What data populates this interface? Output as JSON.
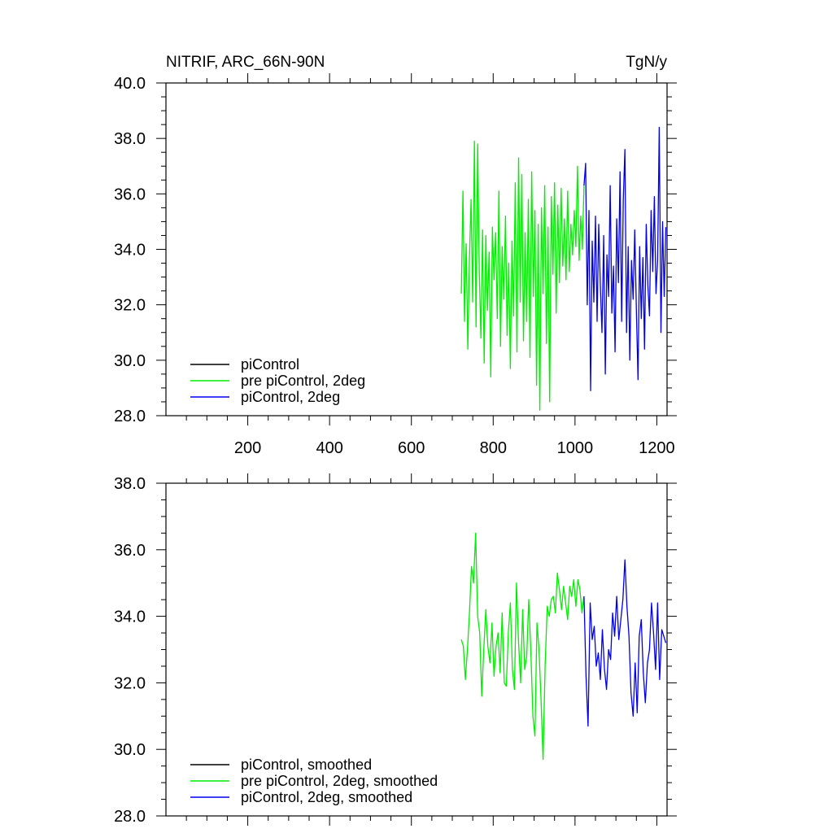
{
  "colors": {
    "black": "#000000",
    "green": "#00ee00",
    "blue": "#0000ee"
  },
  "chart_data": [
    {
      "type": "line",
      "title_left": "NITRIF, ARC_66N-90N",
      "title_right": "TgN/y",
      "xlim": [
        0,
        1225
      ],
      "ylim": [
        28.0,
        40.0
      ],
      "yticks": [
        28.0,
        30.0,
        32.0,
        34.0,
        36.0,
        38.0,
        40.0
      ],
      "ytick_labels": [
        "28.0",
        "30.0",
        "32.0",
        "34.0",
        "36.0",
        "38.0",
        "40.0"
      ],
      "xticks": [
        200,
        400,
        600,
        800,
        1000,
        1200
      ],
      "xtick_labels": [
        "200",
        "400",
        "600",
        "800",
        "1000",
        "1200"
      ],
      "legend": [
        "piControl",
        "pre piControl, 2deg",
        "piControl, 2deg"
      ],
      "legend_location": "bottom-left",
      "series": [
        {
          "name": "piControl",
          "color": "black",
          "x": [],
          "values": []
        },
        {
          "name": "pre piControl, 2deg",
          "color": "green",
          "x": [
            722,
            726,
            730,
            734,
            738,
            742,
            746,
            750,
            754,
            758,
            762,
            766,
            770,
            774,
            778,
            782,
            786,
            790,
            794,
            798,
            802,
            806,
            810,
            814,
            818,
            822,
            826,
            830,
            834,
            838,
            842,
            846,
            850,
            854,
            858,
            862,
            866,
            870,
            874,
            878,
            882,
            886,
            890,
            894,
            898,
            902,
            906,
            910,
            914,
            918,
            922,
            926,
            930,
            934,
            938,
            942,
            946,
            950,
            954,
            958,
            962,
            966,
            970,
            974,
            978,
            982,
            986,
            990,
            994,
            998,
            1002,
            1006,
            1010,
            1014,
            1018,
            1022
          ],
          "values": [
            32.4,
            36.1,
            31.4,
            34.2,
            30.4,
            33.7,
            35.8,
            32.1,
            37.9,
            31.2,
            37.8,
            33.2,
            30.8,
            34.7,
            29.9,
            34.5,
            31.8,
            33.9,
            29.4,
            34.8,
            32.9,
            34.6,
            31.5,
            36.1,
            30.5,
            34.1,
            32.2,
            35.2,
            30.9,
            33.5,
            29.7,
            34.3,
            31.6,
            36.4,
            30.3,
            37.3,
            32.1,
            36.7,
            30.7,
            34.6,
            31.4,
            35.8,
            30.1,
            36.8,
            32.3,
            35.4,
            29.1,
            34.9,
            28.2,
            35.5,
            32.4,
            36.3,
            30.6,
            34.8,
            28.5,
            35.9,
            33.1,
            36.4,
            31.7,
            35.6,
            32.8,
            36.2,
            33.4,
            35.1,
            32.9,
            36.1,
            33.2,
            34.9,
            33.8,
            35.4,
            34.1,
            37.0,
            33.6,
            35.2,
            34.0,
            36.3
          ]
        },
        {
          "name": "piControl, 2deg",
          "color": "blue",
          "x": [
            1022,
            1026,
            1030,
            1034,
            1038,
            1042,
            1046,
            1050,
            1054,
            1058,
            1062,
            1066,
            1070,
            1074,
            1078,
            1082,
            1086,
            1090,
            1094,
            1098,
            1102,
            1106,
            1110,
            1114,
            1118,
            1122,
            1126,
            1130,
            1134,
            1138,
            1142,
            1146,
            1150,
            1154,
            1158,
            1162,
            1166,
            1170,
            1174,
            1178,
            1182,
            1186,
            1190,
            1194,
            1198,
            1202,
            1206,
            1210,
            1214,
            1218,
            1222
          ],
          "values": [
            36.3,
            37.1,
            32.0,
            35.4,
            28.9,
            34.3,
            32.1,
            35.2,
            31.4,
            34.9,
            32.7,
            31.0,
            34.5,
            29.5,
            33.8,
            32.3,
            36.3,
            31.7,
            33.4,
            30.3,
            35.1,
            32.8,
            36.8,
            31.4,
            35.8,
            37.6,
            31.0,
            34.1,
            30.0,
            33.6,
            32.2,
            34.7,
            31.8,
            29.3,
            34.1,
            31.5,
            33.7,
            30.4,
            34.9,
            32.7,
            31.6,
            35.4,
            33.2,
            35.9,
            32.4,
            33.6,
            38.4,
            31.0,
            35.0,
            32.3,
            34.8
          ]
        }
      ]
    },
    {
      "type": "line",
      "xlim": [
        0,
        1225
      ],
      "ylim": [
        28.0,
        38.0
      ],
      "yticks": [
        28.0,
        30.0,
        32.0,
        34.0,
        36.0,
        38.0
      ],
      "ytick_labels": [
        "28.0",
        "30.0",
        "32.0",
        "34.0",
        "36.0",
        "38.0"
      ],
      "xticks": [
        200,
        400,
        600,
        800,
        1000,
        1200
      ],
      "xtick_labels": [],
      "legend": [
        "piControl, smoothed",
        "pre piControl, 2deg, smoothed",
        "piControl, 2deg, smoothed"
      ],
      "legend_location": "bottom-left",
      "series": [
        {
          "name": "piControl, smoothed",
          "color": "black",
          "x": [],
          "values": []
        },
        {
          "name": "pre piControl, 2deg, smoothed",
          "color": "green",
          "x": [
            722,
            727,
            732,
            737,
            742,
            747,
            752,
            757,
            762,
            767,
            772,
            777,
            782,
            787,
            792,
            797,
            802,
            807,
            812,
            817,
            822,
            827,
            832,
            837,
            842,
            847,
            852,
            857,
            862,
            867,
            872,
            877,
            882,
            887,
            892,
            897,
            902,
            907,
            912,
            917,
            922,
            927,
            932,
            937,
            942,
            947,
            952,
            957,
            962,
            967,
            972,
            977,
            982,
            987,
            992,
            997,
            1002,
            1007,
            1012,
            1017,
            1022
          ],
          "values": [
            33.3,
            33.1,
            32.1,
            33.0,
            34.1,
            35.5,
            35.0,
            36.5,
            34.0,
            33.5,
            31.6,
            33.0,
            34.2,
            33.1,
            32.6,
            33.8,
            32.2,
            33.1,
            33.5,
            32.3,
            34.1,
            32.0,
            31.9,
            33.5,
            34.4,
            32.4,
            31.8,
            35.0,
            33.2,
            32.0,
            34.2,
            32.4,
            32.8,
            34.5,
            33.0,
            31.0,
            30.4,
            33.8,
            33.0,
            31.5,
            29.7,
            32.5,
            34.3,
            34.0,
            34.5,
            34.6,
            34.1,
            35.3,
            34.8,
            34.2,
            34.9,
            34.4,
            33.9,
            34.9,
            34.6,
            35.1,
            34.3,
            35.1,
            34.8,
            34.1,
            34.6
          ]
        },
        {
          "name": "piControl, 2deg, smoothed",
          "color": "blue",
          "x": [
            1022,
            1027,
            1032,
            1037,
            1042,
            1047,
            1052,
            1057,
            1062,
            1067,
            1072,
            1077,
            1082,
            1087,
            1092,
            1097,
            1102,
            1107,
            1112,
            1117,
            1122,
            1127,
            1132,
            1137,
            1142,
            1147,
            1152,
            1157,
            1162,
            1167,
            1172,
            1177,
            1182,
            1187,
            1192,
            1197,
            1202,
            1207,
            1212,
            1217,
            1222
          ],
          "values": [
            34.6,
            32.2,
            30.7,
            34.4,
            33.3,
            33.7,
            32.5,
            32.9,
            32.1,
            33.6,
            32.4,
            31.8,
            33.0,
            32.7,
            34.1,
            33.4,
            34.6,
            33.3,
            33.9,
            34.5,
            35.7,
            34.3,
            33.4,
            31.7,
            31.0,
            32.6,
            31.1,
            33.4,
            33.9,
            32.3,
            31.4,
            32.6,
            33.0,
            34.4,
            33.5,
            32.4,
            34.4,
            32.1,
            33.6,
            33.4,
            33.2
          ]
        }
      ]
    }
  ]
}
